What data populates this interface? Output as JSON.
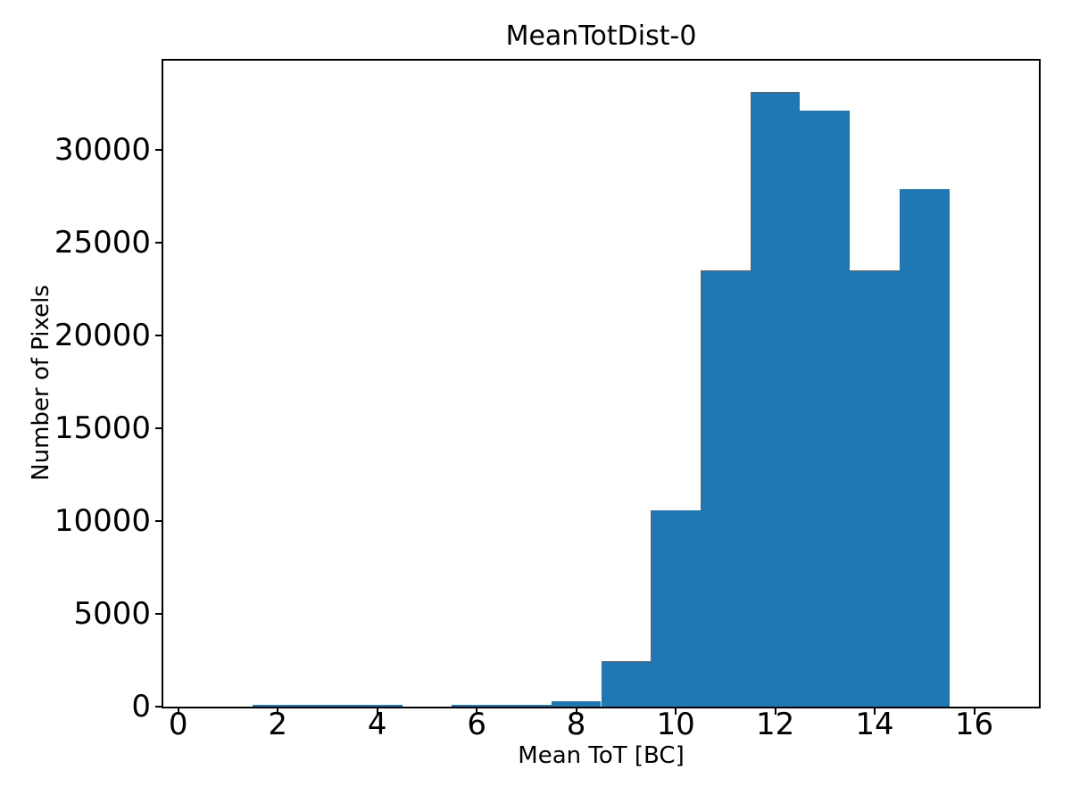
{
  "chart_data": {
    "type": "bar",
    "subtype": "histogram",
    "title": "MeanTotDist-0",
    "xlabel": "Mean ToT [BC]",
    "ylabel": "Number of Pixels",
    "bar_color": "#1f77b4",
    "axis_color": "#000000",
    "background_color": "#ffffff",
    "grid": false,
    "legend": null,
    "bin_width": 1,
    "bin_edges": [
      0.5,
      1.5,
      2.5,
      3.5,
      4.5,
      5.5,
      6.5,
      7.5,
      8.5,
      9.5,
      10.5,
      11.5,
      12.5,
      13.5,
      14.5,
      15.5,
      16.5
    ],
    "bin_centers": [
      1,
      2,
      3,
      4,
      5,
      6,
      7,
      8,
      9,
      10,
      11,
      12,
      13,
      14,
      15,
      16
    ],
    "counts": [
      0,
      100,
      100,
      100,
      0,
      80,
      80,
      300,
      2430,
      10560,
      23520,
      33140,
      32100,
      23520,
      27880,
      0
    ],
    "xlim": [
      -0.3,
      17.3
    ],
    "ylim": [
      0,
      34800
    ],
    "xticks": [
      0,
      2,
      4,
      6,
      8,
      10,
      12,
      14,
      16
    ],
    "xtick_labels": [
      "0",
      "2",
      "4",
      "6",
      "8",
      "10",
      "12",
      "14",
      "16"
    ],
    "yticks": [
      0,
      5000,
      10000,
      15000,
      20000,
      25000,
      30000
    ],
    "ytick_labels": [
      "0",
      "5000",
      "10000",
      "15000",
      "20000",
      "25000",
      "30000"
    ]
  }
}
